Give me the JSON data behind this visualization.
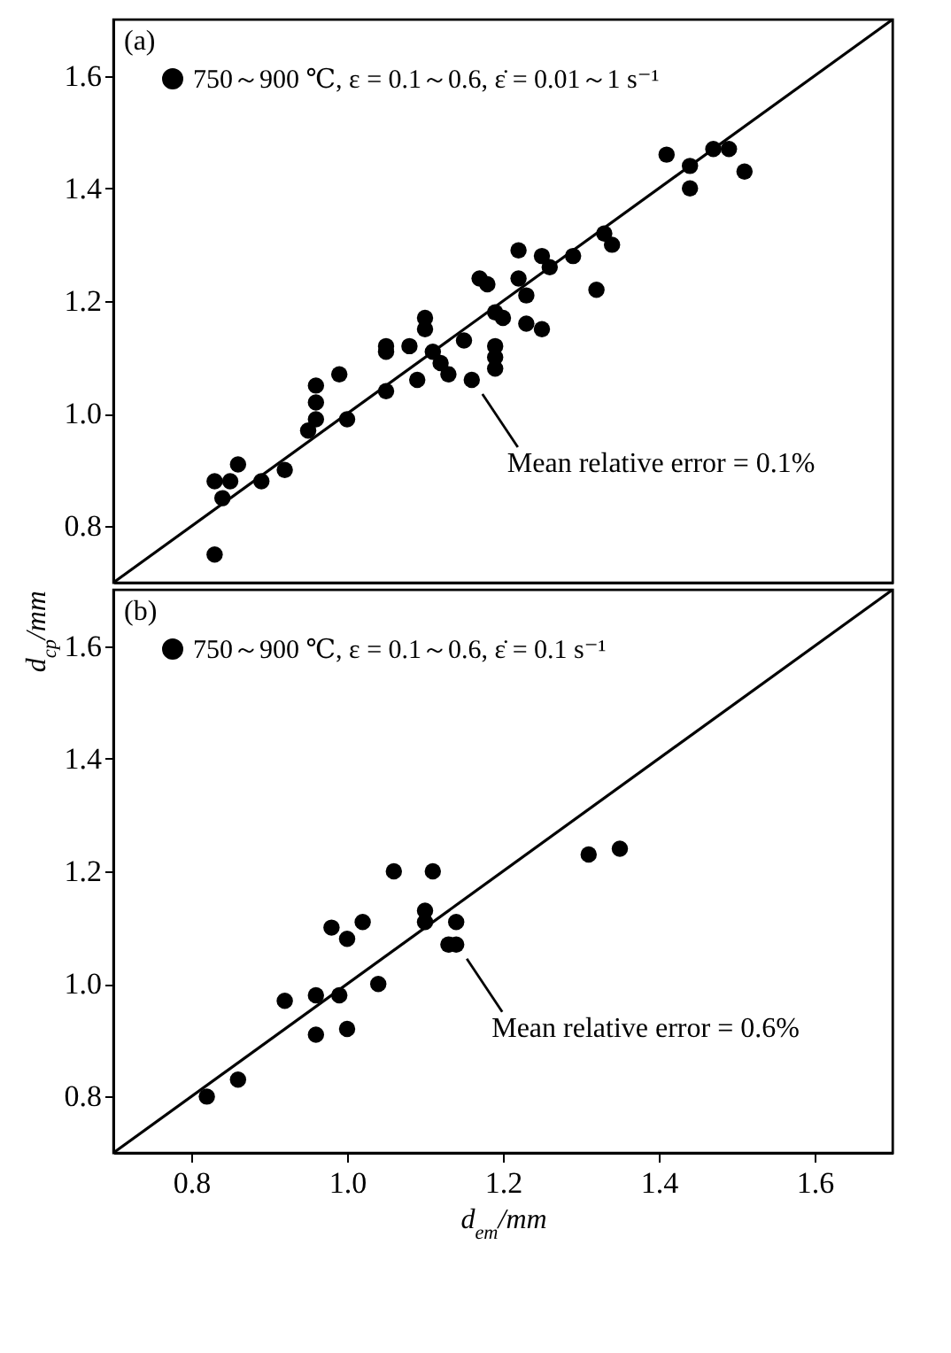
{
  "chart_data": [
    {
      "type": "scatter",
      "xlim": [
        0.7,
        1.7
      ],
      "ylim": [
        0.7,
        1.7
      ],
      "yticks": [
        0.8,
        {
          "value": 1,
          "label": "1.0"
        },
        1.2,
        1.4,
        1.6
      ],
      "tick_labels": "y",
      "legend": "top left",
      "annotations": [
        "(a)",
        {
          "text": "Mean relative error = 0.1%",
          "x": 1.16,
          "y": 1.06
        }
      ],
      "series": [
        {
          "name": "750～900 ℃, ε = 0.1～0.6, ε̇ = 0.01～1 s⁻¹",
          "color": "#000000",
          "marker": "circle",
          "x": [
            0.84,
            0.83,
            0.86,
            0.85,
            0.89,
            0.92,
            0.96,
            0.96,
            0.96,
            0.95,
            0.99,
            1.0,
            1.05,
            1.05,
            1.05,
            1.08,
            1.1,
            1.1,
            1.09,
            1.11,
            1.12,
            1.13,
            1.15,
            1.16,
            1.17,
            1.18,
            1.19,
            1.19,
            1.19,
            1.19,
            1.2,
            1.22,
            1.22,
            1.23,
            1.23,
            1.25,
            1.25,
            1.26,
            1.29,
            1.32,
            1.33,
            1.34,
            1.41,
            1.44,
            1.44,
            1.47,
            1.49,
            1.51,
            0.83
          ],
          "values": [
            0.85,
            0.88,
            0.91,
            0.88,
            0.88,
            0.9,
            1.05,
            1.02,
            0.99,
            0.97,
            1.07,
            0.99,
            1.04,
            1.12,
            1.11,
            1.12,
            1.17,
            1.15,
            1.06,
            1.11,
            1.09,
            1.07,
            1.13,
            1.06,
            1.24,
            1.23,
            1.18,
            1.12,
            1.1,
            1.08,
            1.17,
            1.29,
            1.24,
            1.21,
            1.16,
            1.15,
            1.28,
            1.26,
            1.28,
            1.22,
            1.32,
            1.3,
            1.46,
            1.4,
            1.44,
            1.47,
            1.47,
            1.43,
            0.75
          ]
        },
        {
          "type": "line",
          "color": "#000000",
          "x": [
            0.7,
            1.7
          ],
          "values": [
            0.7,
            1.7
          ]
        }
      ]
    },
    {
      "type": "scatter",
      "xlim": [
        0.7,
        1.7
      ],
      "ylim": [
        0.7,
        1.7
      ],
      "xticks": [
        0.8,
        {
          "value": 1,
          "label": "1.0"
        },
        1.2,
        1.4,
        1.6
      ],
      "yticks": [
        0.8,
        {
          "value": 1,
          "label": "1.0"
        },
        1.2,
        1.4,
        1.6
      ],
      "xlabel": "d$_{em}$/mm",
      "ylabel": "d$_{cp}$/mm",
      "legend": "top left",
      "annotations": [
        "(b)",
        {
          "text": "Mean relative error = 0.6%",
          "x": 1.14,
          "y": 1.07
        }
      ],
      "series": [
        {
          "name": "750～900 ℃, ε = 0.1～0.6, ε̇ = 0.1 s⁻¹",
          "color": "#000000",
          "marker": "circle",
          "x": [
            0.82,
            0.86,
            0.92,
            0.96,
            0.96,
            0.99,
            1.0,
            0.98,
            1.0,
            1.02,
            1.04,
            1.06,
            1.11,
            1.1,
            1.1,
            1.14,
            1.13,
            1.14,
            1.31,
            1.35
          ],
          "values": [
            0.8,
            0.83,
            0.97,
            0.98,
            0.91,
            0.98,
            0.92,
            1.1,
            1.08,
            1.11,
            1.0,
            1.2,
            1.2,
            1.13,
            1.11,
            1.11,
            1.07,
            1.07,
            1.23,
            1.24
          ]
        },
        {
          "type": "line",
          "color": "#000000",
          "x": [
            0.7,
            1.7
          ],
          "values": [
            0.7,
            1.7
          ]
        }
      ]
    }
  ]
}
